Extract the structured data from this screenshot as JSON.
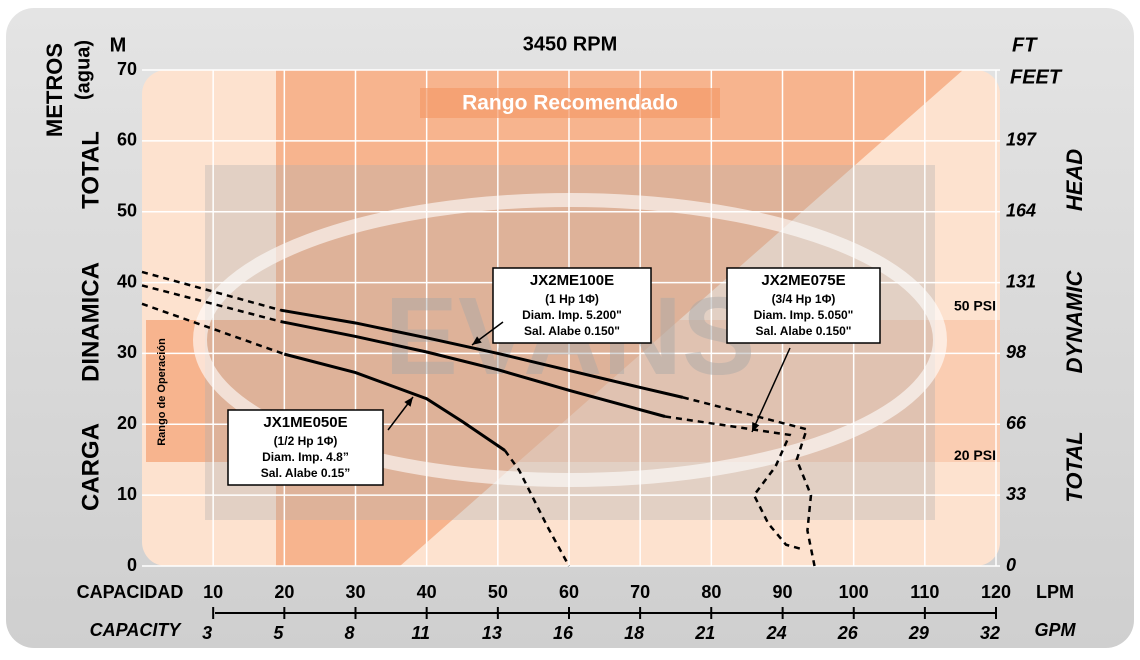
{
  "chart_data": {
    "type": "line",
    "title": "3450 RPM",
    "left_unit": "M",
    "left_title": [
      "METROS",
      "(agua)"
    ],
    "left_axis_title": [
      "TOTAL",
      "DINAMICA",
      "CARGA"
    ],
    "right_unit": [
      "FT",
      "FEET"
    ],
    "right_axis_title": [
      "HEAD",
      "DYNAMIC",
      "TOTAL"
    ],
    "x_label": "CAPACIDAD",
    "x_unit": "LPM",
    "x2_label": "CAPACITY",
    "x2_unit": "GPM",
    "region_label": "Rango Recomendado",
    "operation_label": "Rango de Operación",
    "watermark": "EVANS",
    "xlim": [
      0,
      120
    ],
    "xticks": [
      10,
      20,
      30,
      40,
      50,
      60,
      70,
      80,
      90,
      100,
      110,
      120
    ],
    "x2ticks": [
      {
        "value": 2.642,
        "label": "3"
      },
      {
        "value": 5.283,
        "label": "5"
      },
      {
        "value": 7.925,
        "label": "8"
      },
      {
        "value": 10.567,
        "label": "11"
      },
      {
        "value": 13.209,
        "label": "13"
      },
      {
        "value": 15.85,
        "label": "16"
      },
      {
        "value": 18.49,
        "label": "18"
      },
      {
        "value": 21.13,
        "label": "21"
      },
      {
        "value": 23.78,
        "label": "24"
      },
      {
        "value": 26.42,
        "label": "26"
      },
      {
        "value": 29.06,
        "label": "29"
      },
      {
        "value": 31.7,
        "label": "32"
      }
    ],
    "x2lim": [
      0,
      31.7
    ],
    "ylim": [
      0,
      70
    ],
    "yticks": [
      0,
      10,
      20,
      30,
      40,
      50,
      60,
      70
    ],
    "y2lim": [
      0,
      229.66
    ],
    "y2ticks": [
      0,
      {
        "value": 32.81,
        "label": "33"
      },
      {
        "value": 65.62,
        "label": "66"
      },
      {
        "value": 98.43,
        "label": "98"
      },
      {
        "value": 131.23,
        "label": "131"
      },
      {
        "value": 164.04,
        "label": "164"
      },
      {
        "value": 196.85,
        "label": "197"
      }
    ],
    "grid": true,
    "psi_lines": [
      {
        "label": "50 PSI",
        "value": 35.2
      },
      {
        "label": "20 PSI",
        "value": 14.1
      }
    ],
    "series": [
      {
        "name": "JX2ME100E",
        "color": "#000000",
        "details": [
          "(1 Hp 1Φ)",
          "Diam. Imp. 5.200\"",
          "Sal. Alabe 0.150\""
        ],
        "pieces": [
          {
            "style": "dashed",
            "x": [
              0,
              19.5
            ],
            "values": [
              41.5,
              36.1
            ]
          },
          {
            "style": "solid",
            "x": [
              19.5,
              30,
              40,
              50,
              60,
              70,
              76
            ],
            "values": [
              36.1,
              34.3,
              32.2,
              30,
              27.6,
              25.2,
              23.8
            ]
          },
          {
            "style": "dashed",
            "x": [
              76,
              93.4,
              92,
              94,
              93.5,
              94.5
            ],
            "values": [
              23.8,
              19.3,
              15,
              10,
              5,
              0
            ]
          }
        ]
      },
      {
        "name": "JX2ME075E",
        "color": "#000000",
        "details": [
          "(3/4 Hp 1Φ)",
          "Diam. Imp. 5.050\"",
          "Sal. Alabe 0.150\""
        ],
        "pieces": [
          {
            "style": "dashed",
            "x": [
              0,
              19.5
            ],
            "values": [
              39.6,
              34.5
            ]
          },
          {
            "style": "solid",
            "x": [
              19.5,
              30,
              40,
              50,
              60,
              73.5
            ],
            "values": [
              34.5,
              32.4,
              30.2,
              27.7,
              24.8,
              21.1
            ]
          },
          {
            "style": "dashed",
            "x": [
              73.5,
              91,
              89,
              86,
              88,
              90.5,
              93
            ],
            "values": [
              21.1,
              18.5,
              14,
              10,
              6,
              3,
              2.3
            ]
          }
        ]
      },
      {
        "name": "JX1ME050E",
        "color": "#000000",
        "details": [
          "(1/2 Hp 1Φ)",
          "Diam. Imp. 4.8”",
          "Sal. Alabe 0.15”"
        ],
        "pieces": [
          {
            "style": "dashed",
            "x": [
              0,
              20
            ],
            "values": [
              37,
              29.9
            ]
          },
          {
            "style": "solid",
            "x": [
              20,
              30,
              40,
              45,
              51
            ],
            "values": [
              29.9,
              27.3,
              23.6,
              20.4,
              16.3
            ]
          },
          {
            "style": "dashed",
            "x": [
              51,
              53,
              55,
              57,
              60
            ],
            "values": [
              16.3,
              13.5,
              9.5,
              5.5,
              0
            ]
          }
        ]
      }
    ]
  }
}
